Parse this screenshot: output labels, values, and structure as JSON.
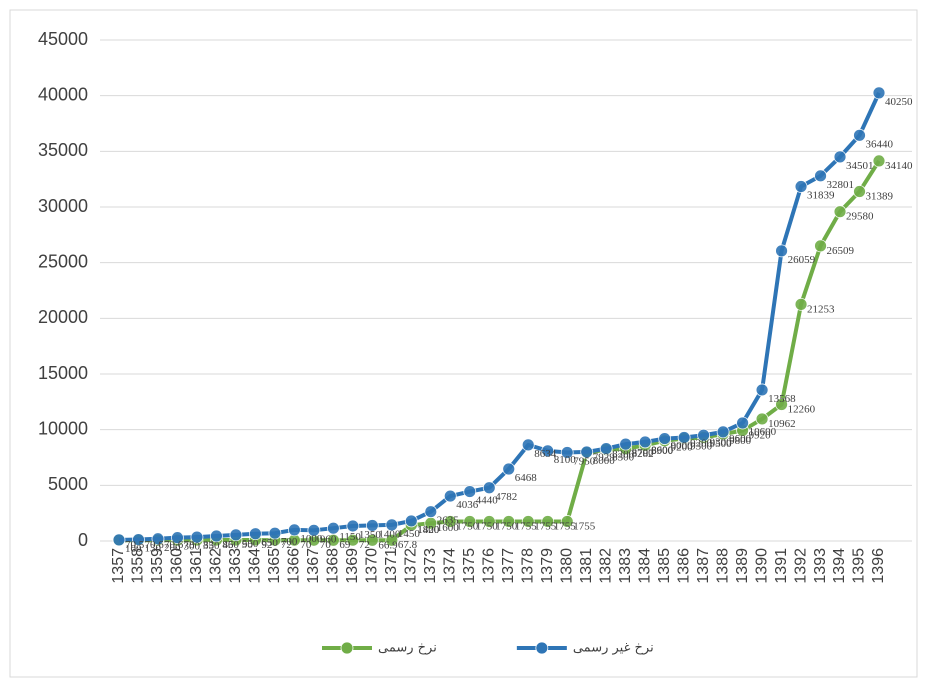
{
  "chart_data": {
    "type": "line",
    "categories": [
      "1357",
      "1358",
      "1359",
      "1360",
      "1361",
      "1362",
      "1363",
      "1364",
      "1365",
      "1366",
      "1367",
      "1368",
      "1369",
      "1370",
      "1371",
      "1372",
      "1373",
      "1374",
      "1375",
      "1376",
      "1377",
      "1378",
      "1379",
      "1380",
      "1381",
      "1382",
      "1383",
      "1384",
      "1385",
      "1386",
      "1387",
      "1388",
      "1389",
      "1390",
      "1391",
      "1392",
      "1393",
      "1394",
      "1395",
      "1396"
    ],
    "series": [
      {
        "name": "نرخ رسمی",
        "color": "#70ad47",
        "values": [
          70.5,
          70.6,
          70.6,
          78,
          83,
          86,
          90,
          92,
          72,
          70,
          70,
          69,
          72,
          66.9,
          67.8,
          1420,
          1600,
          1750,
          1750,
          1750,
          1755,
          1755,
          1755,
          1755,
          7929,
          8200,
          8282,
          8600,
          9000,
          9200,
          9300,
          9600,
          9920,
          10962,
          12260,
          21253,
          26509,
          29580,
          31389,
          34140
        ]
      },
      {
        "name": "نرخ غیر رسمی",
        "color": "#2e75b6",
        "values": [
          100,
          130,
          200,
          300,
          350,
          450,
          550,
          650,
          700,
          1000,
          960,
          1150,
          1350,
          1400,
          1450,
          1800,
          2635,
          4036,
          4440,
          4782,
          6468,
          8634,
          8100,
          7950,
          8000,
          8300,
          8700,
          8900,
          9200,
          9300,
          9500,
          9800,
          10600,
          13568,
          26059,
          31839,
          32801,
          34501,
          36440,
          40250
        ]
      }
    ],
    "ylim": [
      0,
      45000
    ],
    "yticks": [
      0,
      5000,
      10000,
      15000,
      20000,
      25000,
      30000,
      35000,
      40000,
      45000
    ],
    "grid": true,
    "legend": "bottom"
  }
}
